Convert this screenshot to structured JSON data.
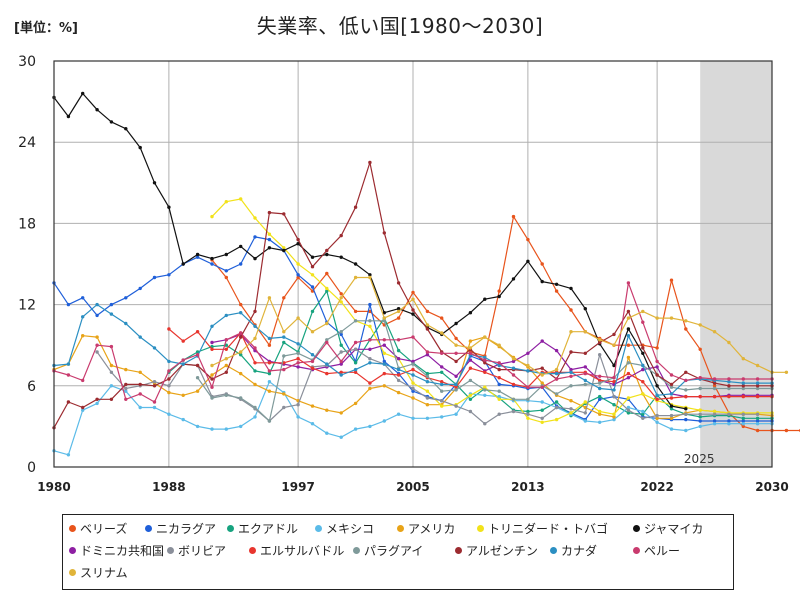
{
  "header": {
    "unit": "[単位：%]",
    "title": "失業率、低い国[1980～2030]"
  },
  "chart_data": {
    "type": "line",
    "title": "失業率、低い国[1980～2030]",
    "unit": "[単位：%]",
    "xlim": [
      1980,
      2030
    ],
    "ylim": [
      0,
      30
    ],
    "x_ticks": [
      1980,
      1988,
      1997,
      2005,
      2013,
      2022,
      2030
    ],
    "y_ticks": [
      0,
      6,
      12,
      18,
      24,
      30
    ],
    "forecast_start": 2025,
    "forecast_label": "2025",
    "grid": true,
    "legend_position": "bottom",
    "series": [
      {
        "name": "ベリーズ",
        "color": "#e8541c",
        "start": 1991,
        "values": [
          15.3,
          14.0,
          12.0,
          10.5,
          9.0,
          12.5,
          14.0,
          13.0,
          14.3,
          12.8,
          11.5,
          11.5,
          10.5,
          11.0,
          12.9,
          11.5,
          11.0,
          9.5,
          8.5,
          8.2,
          13.0,
          18.5,
          16.8,
          15.0,
          13.0,
          11.6,
          10.0,
          9.5,
          9.0,
          9.0,
          9.0,
          8.8,
          13.8,
          10.2,
          8.7,
          6.0,
          4.0,
          3.0,
          2.7,
          2.7,
          2.7,
          2.7,
          2.7,
          2.7,
          2.7,
          2.7
        ]
      },
      {
        "name": "ニカラグア",
        "color": "#1f5fd9",
        "start": 1980,
        "values": [
          13.6,
          12.0,
          12.5,
          11.2,
          12.0,
          12.5,
          13.2,
          14.0,
          14.2,
          15.0,
          15.5,
          15.0,
          14.5,
          15.0,
          17.0,
          16.8,
          16.0,
          14.2,
          13.3,
          10.7,
          9.8,
          7.8,
          12.0,
          7.8,
          6.9,
          5.6,
          5.2,
          4.9,
          6.1,
          8.2,
          7.8,
          6.1,
          6.0,
          5.8,
          5.9,
          4.5,
          4.0,
          3.5,
          5.0,
          5.2,
          5.0,
          3.7,
          3.6,
          3.5,
          3.5,
          3.4,
          3.4,
          3.4,
          3.4,
          3.4,
          3.4
        ]
      },
      {
        "name": "エクアドル",
        "color": "#17a37f",
        "start": 1988,
        "values": [
          7.0,
          7.9,
          8.5,
          8.9,
          9.0,
          8.3,
          7.1,
          6.9,
          9.2,
          8.5,
          11.5,
          13.0,
          9.0,
          7.7,
          9.4,
          11.0,
          8.6,
          7.7,
          6.9,
          7.0,
          6.1,
          5.0,
          5.8,
          5.1,
          4.2,
          4.1,
          4.2,
          4.8,
          3.8,
          4.7,
          5.2,
          4.6,
          4.0,
          3.9,
          5.3,
          4.3,
          3.9,
          3.7,
          3.8,
          3.8,
          3.6,
          3.6,
          3.6
        ]
      },
      {
        "name": "メキシコ",
        "color": "#5bbbe8",
        "start": 1980,
        "values": [
          1.2,
          0.9,
          4.2,
          4.7,
          6.0,
          5.6,
          4.4,
          4.4,
          3.9,
          3.5,
          3.0,
          2.8,
          2.8,
          3.0,
          3.7,
          6.3,
          5.5,
          3.7,
          3.2,
          2.5,
          2.2,
          2.8,
          3.0,
          3.4,
          3.9,
          3.6,
          3.6,
          3.7,
          3.9,
          5.4,
          5.3,
          5.2,
          4.9,
          4.9,
          4.8,
          4.4,
          3.9,
          3.4,
          3.3,
          3.5,
          4.4,
          4.1,
          3.3,
          2.8,
          2.7,
          3.0,
          3.2,
          3.2,
          3.2,
          3.2,
          3.2
        ]
      },
      {
        "name": "アメリカ",
        "color": "#e8a317",
        "start": 1980,
        "values": [
          7.2,
          7.6,
          9.7,
          9.6,
          7.5,
          7.2,
          7.0,
          6.2,
          5.5,
          5.3,
          5.6,
          6.8,
          7.5,
          6.9,
          6.1,
          5.6,
          5.4,
          4.9,
          4.5,
          4.2,
          4.0,
          4.7,
          5.8,
          6.0,
          5.5,
          5.1,
          4.6,
          4.6,
          5.8,
          9.3,
          9.6,
          8.9,
          8.1,
          7.4,
          6.2,
          5.3,
          4.9,
          4.4,
          3.9,
          3.7,
          8.1,
          5.4,
          3.6,
          3.6,
          4.0,
          4.2,
          4.1,
          4.0,
          3.9,
          3.9,
          3.8
        ]
      },
      {
        "name": "トリニダード・トバゴ",
        "color": "#f2e21a",
        "start": 1991,
        "values": [
          18.5,
          19.6,
          19.8,
          18.4,
          17.2,
          16.2,
          15.0,
          14.2,
          13.2,
          12.2,
          10.8,
          10.4,
          8.4,
          8.0,
          6.2,
          5.6,
          4.5,
          4.6,
          5.3,
          5.9,
          5.0,
          5.0,
          3.6,
          3.3,
          3.5,
          4.0,
          4.8,
          4.1,
          3.9,
          5.1,
          5.4,
          4.9,
          4.6,
          4.4,
          4.2,
          4.1,
          4.0,
          4.0,
          4.0,
          4.0
        ]
      },
      {
        "name": "ジャマイカ",
        "color": "#111111",
        "start": 1980,
        "values": [
          27.3,
          25.9,
          27.6,
          26.4,
          25.5,
          25.0,
          23.6,
          21.0,
          19.2,
          15.0,
          15.7,
          15.4,
          15.7,
          16.3,
          15.4,
          16.2,
          16.0,
          16.5,
          15.5,
          15.7,
          15.5,
          15.0,
          14.2,
          11.4,
          11.7,
          11.3,
          10.3,
          9.8,
          10.6,
          11.4,
          12.4,
          12.6,
          13.9,
          15.2,
          13.7,
          13.5,
          13.2,
          11.7,
          9.1,
          7.5,
          10.2,
          8.4,
          6.0,
          4.5,
          4.3
        ]
      },
      {
        "name": "ドミニカ共和国",
        "color": "#8e1fa3",
        "start": 1991,
        "values": [
          9.2,
          9.4,
          9.8,
          8.6,
          7.8,
          7.6,
          7.4,
          7.2,
          7.4,
          7.6,
          8.7,
          8.7,
          9.0,
          8.0,
          7.8,
          8.3,
          7.4,
          6.7,
          7.9,
          7.1,
          7.6,
          7.8,
          8.4,
          9.3,
          8.6,
          7.2,
          7.4,
          6.4,
          6.1,
          6.6,
          7.2,
          7.4,
          5.4,
          5.2,
          5.2,
          5.2,
          5.3,
          5.3,
          5.3,
          5.3
        ]
      },
      {
        "name": "ボリビア",
        "color": "#8a8f9a",
        "start": 1983,
        "values": [
          8.5,
          7.0,
          5.8,
          6.0,
          6.3,
          6.0,
          7.6,
          7.5,
          5.2,
          5.4,
          5.0,
          4.3,
          3.4,
          4.4,
          4.6,
          7.4,
          7.5,
          8.5,
          8.7,
          8.0,
          7.6,
          6.4,
          5.8,
          5.1,
          4.9,
          4.5,
          4.1,
          3.2,
          3.9,
          4.1,
          3.9,
          3.6,
          4.4,
          4.3,
          4.0,
          8.3,
          5.2,
          4.2,
          3.6,
          3.8,
          3.8,
          3.9,
          3.9,
          3.9,
          3.9,
          3.9,
          3.9
        ]
      },
      {
        "name": "エルサルバドル",
        "color": "#e8352e",
        "start": 1988,
        "values": [
          10.2,
          9.3,
          10.0,
          8.7,
          8.7,
          9.9,
          7.7,
          7.7,
          7.7,
          8.0,
          7.3,
          6.9,
          7.0,
          7.0,
          6.2,
          6.9,
          6.8,
          7.2,
          6.6,
          6.3,
          5.9,
          7.3,
          7.0,
          6.6,
          6.1,
          5.9,
          7.0,
          7.0,
          7.0,
          7.0,
          6.4,
          6.3,
          6.9,
          6.3,
          5.0,
          5.1,
          5.2,
          5.2,
          5.2,
          5.2,
          5.2,
          5.2,
          5.2
        ]
      },
      {
        "name": "パラグアイ",
        "color": "#7f9a9a",
        "start": 1990,
        "values": [
          6.6,
          5.1,
          5.3,
          5.1,
          4.4,
          3.4,
          8.2,
          8.4,
          7.9,
          9.4,
          10.0,
          10.8,
          10.8,
          10.8,
          7.3,
          7.6,
          6.7,
          5.6,
          5.7,
          6.4,
          5.7,
          5.6,
          5.0,
          5.0,
          6.0,
          5.4,
          6.0,
          6.1,
          6.2,
          6.6,
          7.7,
          7.5,
          6.8,
          5.9,
          5.7,
          5.8,
          5.8,
          5.8,
          5.8,
          5.8,
          5.8
        ]
      },
      {
        "name": "アルゼンチン",
        "color": "#9c2b30",
        "start": 1980,
        "values": [
          2.9,
          4.8,
          4.4,
          5.0,
          5.0,
          6.1,
          6.1,
          6.0,
          6.5,
          7.6,
          7.5,
          6.5,
          7.0,
          9.6,
          11.5,
          18.8,
          18.7,
          16.8,
          14.8,
          16.0,
          17.1,
          19.2,
          22.5,
          17.3,
          13.6,
          11.6,
          10.2,
          8.5,
          7.8,
          8.7,
          7.7,
          7.2,
          7.2,
          7.1,
          7.3,
          6.5,
          8.5,
          8.4,
          9.2,
          9.8,
          11.5,
          8.8,
          6.8,
          6.1,
          7.0,
          6.5,
          6.2,
          6.0,
          6.0,
          6.0,
          6.0
        ]
      },
      {
        "name": "カナダ",
        "color": "#2b8fc2",
        "start": 1980,
        "values": [
          7.5,
          7.6,
          11.1,
          12.0,
          11.3,
          10.6,
          9.6,
          8.8,
          7.8,
          7.6,
          8.2,
          10.4,
          11.2,
          11.4,
          10.4,
          9.5,
          9.6,
          9.1,
          8.3,
          7.6,
          6.8,
          7.2,
          7.7,
          7.6,
          7.2,
          6.8,
          6.3,
          6.1,
          6.1,
          8.3,
          8.1,
          7.5,
          7.3,
          7.1,
          6.9,
          6.9,
          7.0,
          6.4,
          5.8,
          5.7,
          9.7,
          7.5,
          5.3,
          5.4,
          6.4,
          6.5,
          6.4,
          6.3,
          6.2,
          6.2,
          6.2
        ]
      },
      {
        "name": "ペルー",
        "color": "#c93b6e",
        "start": 1980,
        "values": [
          7.1,
          6.8,
          6.4,
          9.0,
          8.9,
          5.0,
          5.4,
          4.8,
          7.1,
          7.9,
          8.3,
          5.9,
          9.4,
          9.9,
          8.8,
          7.1,
          7.2,
          7.7,
          7.8,
          9.2,
          7.8,
          9.2,
          9.4,
          9.4,
          9.4,
          9.6,
          8.5,
          8.4,
          8.4,
          8.4,
          7.9,
          7.7,
          6.8,
          5.9,
          5.9,
          6.5,
          6.7,
          6.9,
          6.7,
          6.6,
          13.6,
          10.7,
          7.8,
          6.8,
          6.4,
          6.6,
          6.5,
          6.5,
          6.5,
          6.5,
          6.5
        ]
      },
      {
        "name": "スリナム",
        "color": "#e0b43a",
        "start": 1991,
        "values": [
          7.5,
          8.0,
          8.5,
          9.5,
          12.5,
          10.0,
          11.0,
          10.0,
          10.6,
          12.5,
          14.0,
          14.0,
          11.0,
          11.5,
          12.4,
          10.5,
          9.9,
          9.0,
          8.8,
          9.6,
          9.0,
          8.0,
          7.5,
          6.8,
          7.2,
          10.0,
          10.0,
          9.4,
          9.0,
          11.0,
          11.5,
          11.0,
          11.0,
          10.8,
          10.5,
          10.0,
          9.2,
          8.0,
          7.5,
          7.0,
          7.0
        ]
      }
    ]
  }
}
